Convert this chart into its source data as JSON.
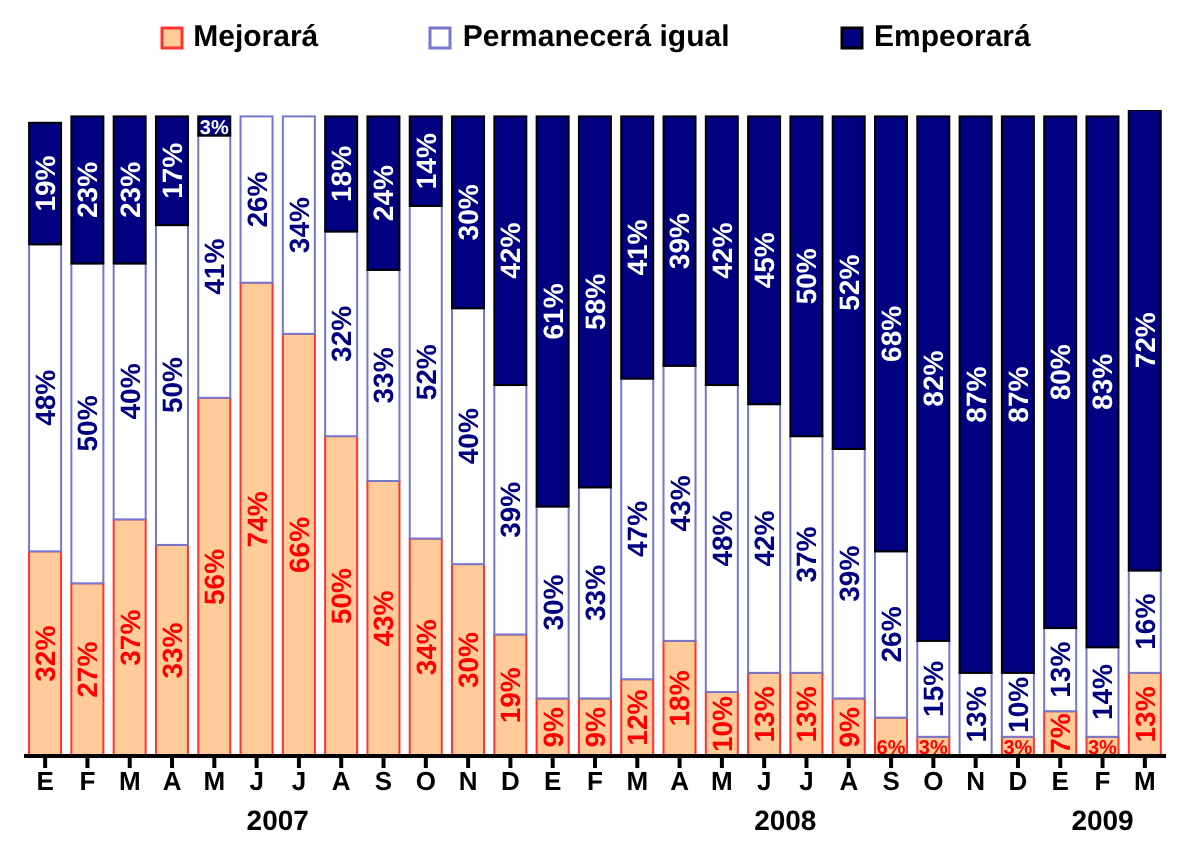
{
  "chart_data": {
    "type": "bar",
    "stacked": true,
    "legend": "top",
    "tick_labels": "x",
    "ylim": [
      0,
      101
    ],
    "categories": [
      "E",
      "F",
      "M",
      "A",
      "M",
      "J",
      "J",
      "A",
      "S",
      "O",
      "N",
      "D",
      "E",
      "F",
      "M",
      "A",
      "M",
      "J",
      "J",
      "A",
      "S",
      "O",
      "N",
      "D",
      "E",
      "F",
      "M"
    ],
    "series": [
      {
        "name": "Mejorará",
        "color": "#ffcc99",
        "values": [
          32,
          27,
          37,
          33,
          56,
          74,
          66,
          50,
          43,
          34,
          30,
          19,
          9,
          9,
          12,
          18,
          10,
          13,
          13,
          9,
          6,
          3,
          null,
          3,
          7,
          3,
          13
        ],
        "value_labels": [
          "32%",
          "27%",
          "37%",
          "33%",
          "56%",
          "74%",
          "66%",
          "50%",
          "43%",
          "34%",
          "30%",
          "19%",
          "9%",
          "9%",
          "12%",
          "18%",
          "10%",
          "13%",
          "13%",
          "9%",
          "6%",
          "3%",
          null,
          "3%",
          "7%",
          "3%",
          "13%"
        ]
      },
      {
        "name": "Permanecerá igual",
        "color": "#ffffff",
        "values": [
          48,
          50,
          40,
          50,
          41,
          26,
          34,
          32,
          33,
          52,
          40,
          39,
          30,
          33,
          47,
          43,
          48,
          42,
          37,
          39,
          26,
          15,
          13,
          10,
          13,
          14,
          16
        ],
        "value_labels": [
          "48%",
          "50%",
          "40%",
          "50%",
          "41%",
          "26%",
          "34%",
          "32%",
          "33%",
          "52%",
          "40%",
          "39%",
          "30%",
          "33%",
          "47%",
          "43%",
          "48%",
          "42%",
          "37%",
          "39%",
          "26%",
          "15%",
          "13%",
          "10%",
          "13%",
          "14%",
          "16%"
        ]
      },
      {
        "name": "Empeorará",
        "color": "#000080",
        "values": [
          19,
          23,
          23,
          17,
          3,
          null,
          null,
          18,
          24,
          14,
          30,
          42,
          61,
          58,
          41,
          39,
          42,
          45,
          50,
          52,
          68,
          82,
          87,
          87,
          80,
          83,
          72
        ],
        "value_labels": [
          "19%",
          "23%",
          "23%",
          "17%",
          "3%",
          null,
          null,
          "18%",
          "24%",
          "14%",
          "30%",
          "42%",
          "61%",
          "58%",
          "41%",
          "39%",
          "42%",
          "45%",
          "50%",
          "52%",
          "68%",
          "82%",
          "87%",
          "87%",
          "80%",
          "83%",
          "72%"
        ]
      }
    ],
    "annotations": [
      "2007",
      "2008",
      "2009"
    ]
  }
}
